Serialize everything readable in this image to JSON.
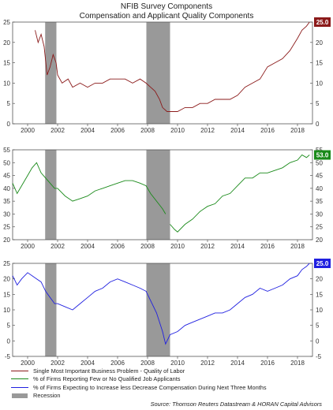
{
  "chart_data": {
    "type": "line",
    "title": "NFIB Survey Components",
    "subtitle": "Compensation and Applicant Quality Components",
    "legend": [
      "Single Most Important Business Problem - Quality of Labor",
      "% of Firms Reporting Few or No Qualified Job Applicants",
      "% of Firms Expecting to Increase less Decrease Compensation During Next Three Months",
      "Recession"
    ],
    "source": "Source: Thomson Reuters Datastream & HORAN Capital Advisors",
    "x_ticks": [
      2000,
      2002,
      2004,
      2006,
      2008,
      2010,
      2012,
      2014,
      2016,
      2018
    ],
    "xlim": [
      1999.0,
      2019.0
    ],
    "recessions": [
      [
        2001.17,
        2001.92
      ],
      [
        2007.92,
        2009.5
      ]
    ],
    "panels": [
      {
        "series_name": "Single Most Important Business Problem - Quality of Labor",
        "color": "#8b1a1a",
        "ylim": [
          0,
          25
        ],
        "y_ticks": [
          0,
          5,
          10,
          15,
          20,
          25
        ],
        "last_label": "25.0",
        "points": [
          [
            2000.5,
            23
          ],
          [
            2000.7,
            20
          ],
          [
            2000.9,
            22
          ],
          [
            2001.1,
            19
          ],
          [
            2001.3,
            12
          ],
          [
            2001.5,
            14
          ],
          [
            2001.7,
            17
          ],
          [
            2001.9,
            15
          ],
          [
            2002.0,
            12
          ],
          [
            2002.3,
            10
          ],
          [
            2002.7,
            11
          ],
          [
            2003.0,
            9
          ],
          [
            2003.5,
            10
          ],
          [
            2004.0,
            9
          ],
          [
            2004.5,
            10
          ],
          [
            2005.0,
            10
          ],
          [
            2005.5,
            11
          ],
          [
            2006.0,
            11
          ],
          [
            2006.5,
            11
          ],
          [
            2007.0,
            10
          ],
          [
            2007.5,
            11
          ],
          [
            2007.9,
            10
          ],
          [
            2008.2,
            9
          ],
          [
            2008.5,
            8
          ],
          [
            2008.8,
            6
          ],
          [
            2009.0,
            4
          ],
          [
            2009.3,
            3
          ],
          [
            2009.6,
            3
          ],
          [
            2010.0,
            3
          ],
          [
            2010.5,
            4
          ],
          [
            2011.0,
            4
          ],
          [
            2011.5,
            5
          ],
          [
            2012.0,
            5
          ],
          [
            2012.5,
            6
          ],
          [
            2013.0,
            6
          ],
          [
            2013.5,
            6
          ],
          [
            2014.0,
            7
          ],
          [
            2014.5,
            9
          ],
          [
            2015.0,
            10
          ],
          [
            2015.5,
            11
          ],
          [
            2016.0,
            14
          ],
          [
            2016.5,
            15
          ],
          [
            2017.0,
            16
          ],
          [
            2017.5,
            18
          ],
          [
            2018.0,
            21
          ],
          [
            2018.3,
            23
          ],
          [
            2018.6,
            24
          ],
          [
            2018.8,
            25
          ]
        ]
      },
      {
        "series_name": "% of Firms Reporting Few or No Qualified Job Applicants",
        "color": "#1a8a1a",
        "ylim": [
          20,
          55
        ],
        "y_ticks": [
          20,
          25,
          30,
          35,
          40,
          45,
          50,
          55
        ],
        "last_label": "53.0",
        "points": [
          [
            1999.0,
            42
          ],
          [
            1999.3,
            38
          ],
          [
            1999.6,
            41
          ],
          [
            2000.0,
            45
          ],
          [
            2000.3,
            48
          ],
          [
            2000.6,
            50
          ],
          [
            2000.9,
            46
          ],
          [
            2001.2,
            44
          ],
          [
            2001.5,
            42
          ],
          [
            2001.8,
            40
          ],
          [
            2002.0,
            40
          ],
          [
            2002.5,
            37
          ],
          [
            2003.0,
            35
          ],
          [
            2003.5,
            36
          ],
          [
            2004.0,
            37
          ],
          [
            2004.5,
            39
          ],
          [
            2005.0,
            40
          ],
          [
            2005.5,
            41
          ],
          [
            2006.0,
            42
          ],
          [
            2006.5,
            43
          ],
          [
            2007.0,
            43
          ],
          [
            2007.5,
            42
          ],
          [
            2007.9,
            41
          ],
          [
            2008.2,
            38
          ],
          [
            2008.6,
            35
          ],
          [
            2009.0,
            32
          ],
          [
            2009.2,
            30
          ]
        ],
        "points_b": [
          [
            2009.5,
            26
          ],
          [
            2009.8,
            24
          ],
          [
            2010.0,
            23
          ],
          [
            2010.5,
            26
          ],
          [
            2011.0,
            28
          ],
          [
            2011.5,
            31
          ],
          [
            2012.0,
            33
          ],
          [
            2012.5,
            34
          ],
          [
            2013.0,
            37
          ],
          [
            2013.5,
            38
          ],
          [
            2014.0,
            41
          ],
          [
            2014.5,
            44
          ],
          [
            2015.0,
            44
          ],
          [
            2015.5,
            46
          ],
          [
            2016.0,
            46
          ],
          [
            2016.5,
            47
          ],
          [
            2017.0,
            48
          ],
          [
            2017.5,
            50
          ],
          [
            2018.0,
            51
          ],
          [
            2018.3,
            53
          ],
          [
            2018.6,
            52
          ],
          [
            2018.8,
            53
          ]
        ]
      },
      {
        "series_name": "% of Firms Expecting to Increase less Decrease Compensation During Next Three Months",
        "color": "#2020e0",
        "ylim": [
          -5,
          25
        ],
        "y_ticks": [
          -5,
          0,
          5,
          10,
          15,
          20,
          25
        ],
        "last_label": "25.0",
        "points": [
          [
            1999.0,
            21
          ],
          [
            1999.3,
            18
          ],
          [
            1999.6,
            20
          ],
          [
            2000.0,
            22
          ],
          [
            2000.3,
            21
          ],
          [
            2000.6,
            20
          ],
          [
            2000.9,
            19
          ],
          [
            2001.2,
            16
          ],
          [
            2001.5,
            14
          ],
          [
            2001.8,
            12
          ],
          [
            2002.0,
            12
          ],
          [
            2002.5,
            11
          ],
          [
            2003.0,
            10
          ],
          [
            2003.5,
            12
          ],
          [
            2004.0,
            14
          ],
          [
            2004.5,
            16
          ],
          [
            2005.0,
            17
          ],
          [
            2005.5,
            19
          ],
          [
            2006.0,
            20
          ],
          [
            2006.5,
            19
          ],
          [
            2007.0,
            18
          ],
          [
            2007.5,
            17
          ],
          [
            2007.9,
            16
          ],
          [
            2008.2,
            13
          ],
          [
            2008.6,
            9
          ],
          [
            2009.0,
            3
          ],
          [
            2009.2,
            -1
          ],
          [
            2009.5,
            2
          ],
          [
            2010.0,
            3
          ],
          [
            2010.5,
            5
          ],
          [
            2011.0,
            6
          ],
          [
            2011.5,
            7
          ],
          [
            2012.0,
            8
          ],
          [
            2012.5,
            9
          ],
          [
            2013.0,
            9
          ],
          [
            2013.5,
            10
          ],
          [
            2014.0,
            12
          ],
          [
            2014.5,
            14
          ],
          [
            2015.0,
            15
          ],
          [
            2015.5,
            17
          ],
          [
            2016.0,
            16
          ],
          [
            2016.5,
            17
          ],
          [
            2017.0,
            18
          ],
          [
            2017.5,
            20
          ],
          [
            2018.0,
            21
          ],
          [
            2018.3,
            23
          ],
          [
            2018.6,
            24
          ],
          [
            2018.8,
            25
          ]
        ]
      }
    ]
  }
}
